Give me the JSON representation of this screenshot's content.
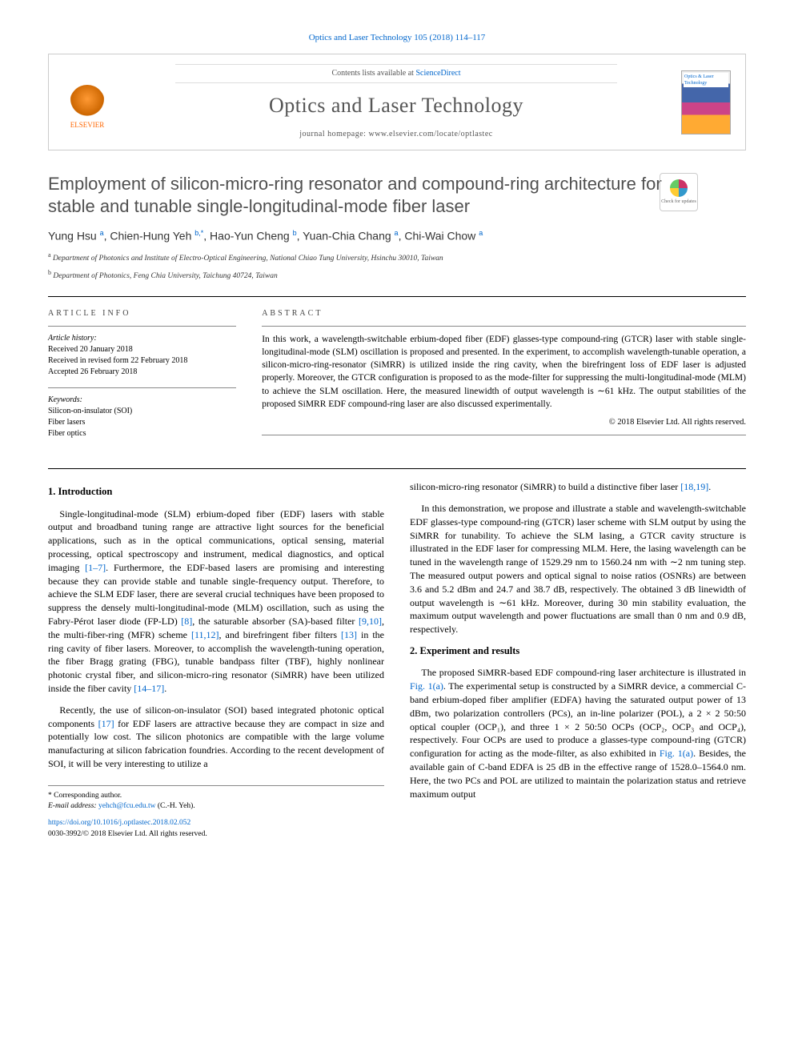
{
  "journal_ref": "Optics and Laser Technology 105 (2018) 114–117",
  "header": {
    "contents_prefix": "Contents lists available at ",
    "contents_link": "ScienceDirect",
    "journal_name": "Optics and Laser Technology",
    "homepage_prefix": "journal homepage: ",
    "homepage_url": "www.elsevier.com/locate/optlastec",
    "publisher_label": "ELSEVIER",
    "cover_label": "Optics & Laser Technology"
  },
  "check_updates_label": "Check for updates",
  "title": "Employment of silicon-micro-ring resonator and compound-ring architecture for stable and tunable single-longitudinal-mode fiber laser",
  "authors_html": "Yung Hsu <sup>a</sup>, Chien-Hung Yeh <sup>b,*</sup>, Hao-Yun Cheng <sup>b</sup>, Yuan-Chia Chang <sup>a</sup>, Chi-Wai Chow <sup>a</sup>",
  "affiliations": [
    {
      "sup": "a",
      "text": "Department of Photonics and Institute of Electro-Optical Engineering, National Chiao Tung University, Hsinchu 30010, Taiwan"
    },
    {
      "sup": "b",
      "text": "Department of Photonics, Feng Chia University, Taichung 40724, Taiwan"
    }
  ],
  "info": {
    "heading": "ARTICLE INFO",
    "history_label": "Article history:",
    "history": [
      "Received 20 January 2018",
      "Received in revised form 22 February 2018",
      "Accepted 26 February 2018"
    ],
    "keywords_label": "Keywords:",
    "keywords": [
      "Silicon-on-insulator (SOI)",
      "Fiber lasers",
      "Fiber optics"
    ]
  },
  "abstract": {
    "heading": "ABSTRACT",
    "text": "In this work, a wavelength-switchable erbium-doped fiber (EDF) glasses-type compound-ring (GTCR) laser with stable single-longitudinal-mode (SLM) oscillation is proposed and presented. In the experiment, to accomplish wavelength-tunable operation, a silicon-micro-ring-resonator (SiMRR) is utilized inside the ring cavity, when the birefringent loss of EDF laser is adjusted properly. Moreover, the GTCR configuration is proposed to as the mode-filter for suppressing the multi-longitudinal-mode (MLM) to achieve the SLM oscillation. Here, the measured linewidth of output wavelength is ∼61 kHz. The output stabilities of the proposed SiMRR EDF compound-ring laser are also discussed experimentally.",
    "copyright": "© 2018 Elsevier Ltd. All rights reserved."
  },
  "body": {
    "section1_heading": "1. Introduction",
    "p1": "Single-longitudinal-mode (SLM) erbium-doped fiber (EDF) lasers with stable output and broadband tuning range are attractive light sources for the beneficial applications, such as in the optical communications, optical sensing, material processing, optical spectroscopy and instrument, medical diagnostics, and optical imaging [1–7]. Furthermore, the EDF-based lasers are promising and interesting because they can provide stable and tunable single-frequency output. Therefore, to achieve the SLM EDF laser, there are several crucial techniques have been proposed to suppress the densely multi-longitudinal-mode (MLM) oscillation, such as using the Fabry-Pérot laser diode (FP-LD) [8], the saturable absorber (SA)-based filter [9,10], the multi-fiber-ring (MFR) scheme [11,12], and birefringent fiber filters [13] in the ring cavity of fiber lasers. Moreover, to accomplish the wavelength-tuning operation, the fiber Bragg grating (FBG), tunable bandpass filter (TBF), highly nonlinear photonic crystal fiber, and silicon-micro-ring resonator (SiMRR) have been utilized inside the fiber cavity [14–17].",
    "p2": "Recently, the use of silicon-on-insulator (SOI) based integrated photonic optical components [17] for EDF lasers are attractive because they are compact in size and potentially low cost. The silicon photonics are compatible with the large volume manufacturing at silicon fabrication foundries. According to the recent development of SOI, it will be very interesting to utilize a",
    "p3": "silicon-micro-ring resonator (SiMRR) to build a distinctive fiber laser [18,19].",
    "p4": "In this demonstration, we propose and illustrate a stable and wavelength-switchable EDF glasses-type compound-ring (GTCR) laser scheme with SLM output by using the SiMRR for tunability. To achieve the SLM lasing, a GTCR cavity structure is illustrated in the EDF laser for compressing MLM. Here, the lasing wavelength can be tuned in the wavelength range of 1529.29 nm to 1560.24 nm with ∼2 nm tuning step. The measured output powers and optical signal to noise ratios (OSNRs) are between 3.6 and 5.2 dBm and 24.7 and 38.7 dB, respectively. The obtained 3 dB linewidth of output wavelength is ∼61 kHz. Moreover, during 30 min stability evaluation, the maximum output wavelength and power fluctuations are small than 0 nm and 0.9 dB, respectively.",
    "section2_heading": "2. Experiment and results",
    "p5": "The proposed SiMRR-based EDF compound-ring laser architecture is illustrated in Fig. 1(a). The experimental setup is constructed by a SiMRR device, a commercial C-band erbium-doped fiber amplifier (EDFA) having the saturated output power of 13 dBm, two polarization controllers (PCs), an in-line polarizer (POL), a 2 × 2 50:50 optical coupler (OCP₁), and three 1 × 2 50:50 OCPs (OCP₂, OCP₃ and OCP₄), respectively. Four OCPs are used to produce a glasses-type compound-ring (GTCR) configuration for acting as the mode-filter, as also exhibited in Fig. 1(a). Besides, the available gain of C-band EDFA is 25 dB in the effective range of 1528.0–1564.0 nm. Here, the two PCs and POL are utilized to maintain the polarization status and retrieve maximum output"
  },
  "footer": {
    "corresponding_label": "* Corresponding author.",
    "email_label": "E-mail address: ",
    "email": "yehch@fcu.edu.tw",
    "email_who": " (C.-H. Yeh).",
    "doi": "https://doi.org/10.1016/j.optlastec.2018.02.052",
    "issn_line": "0030-3992/© 2018 Elsevier Ltd. All rights reserved."
  },
  "colors": {
    "link": "#0066cc",
    "title_gray": "#505050",
    "elsevier_orange": "#ff6600"
  }
}
